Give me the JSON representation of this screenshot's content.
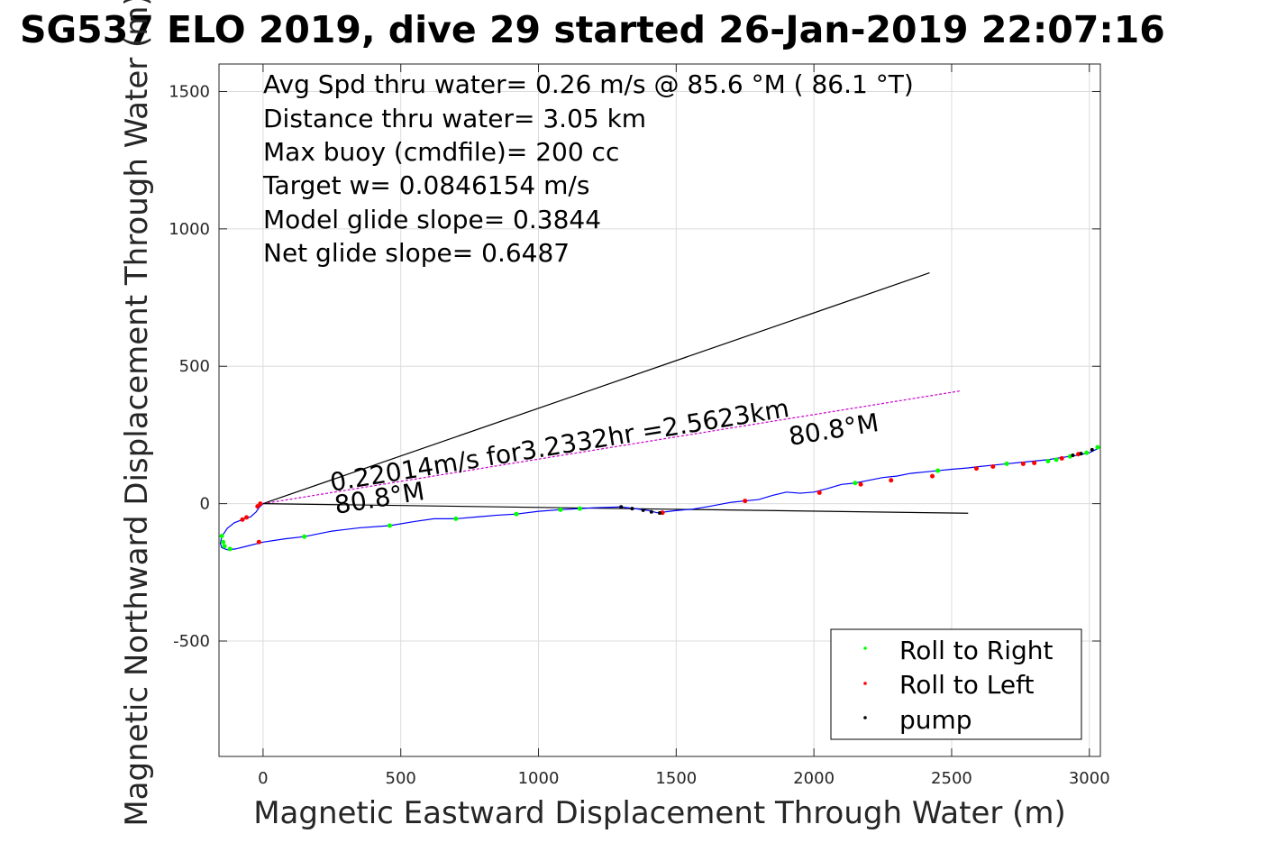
{
  "chart_data": {
    "type": "line",
    "title": "SG537 ELO 2019, dive 29 started 26-Jan-2019 22:07:16",
    "xlabel": "Magnetic Eastward Displacement Through Water (m)",
    "ylabel": "Magnetic Northward Displacement Through Water (m)",
    "xlim": [
      -160,
      3040
    ],
    "ylim": [
      -920,
      1600
    ],
    "xticks": [
      0,
      500,
      1000,
      1500,
      2000,
      2500,
      3000
    ],
    "yticks": [
      -500,
      0,
      500,
      1000,
      1500
    ],
    "grid": true,
    "info_lines": [
      "Avg Spd thru water=  0.26 m/s @  85.6 °M ( 86.1 °T)",
      "Distance thru water=  3.05 km",
      "Max buoy (cmdfile)= 200 cc",
      "Target w= 0.0846154 m/s",
      "Model glide slope= 0.3844",
      "Net glide slope= 0.6487"
    ],
    "annotations": {
      "current": "0.22014m/s for3.2332hr =2.5623km",
      "heading_near": "80.8°M",
      "heading_far": "80.8°M"
    },
    "lines": [
      {
        "role": "model-glide-slope",
        "color": "#000000",
        "x": [
          0,
          2420
        ],
        "y": [
          0,
          840
        ]
      },
      {
        "role": "current-vector",
        "color": "#cc00cc",
        "x": [
          0,
          2530
        ],
        "y": [
          0,
          410
        ]
      },
      {
        "role": "heading-line",
        "color": "#000000",
        "x": [
          0,
          2560
        ],
        "y": [
          0,
          -35
        ]
      }
    ],
    "track": {
      "color": "#0000ff",
      "x": [
        0,
        -15,
        -25,
        -45,
        -75,
        -105,
        -130,
        -150,
        -155,
        -150,
        -130,
        -100,
        -60,
        0,
        80,
        150,
        250,
        350,
        460,
        550,
        620,
        700,
        780,
        850,
        920,
        1000,
        1080,
        1150,
        1200,
        1300,
        1350,
        1400,
        1430,
        1460,
        1500,
        1560,
        1620,
        1700,
        1750,
        1800,
        1850,
        1900,
        1950,
        2000,
        2050,
        2100,
        2150,
        2200,
        2250,
        2300,
        2350,
        2400,
        2450,
        2500,
        2560,
        2600,
        2650,
        2700,
        2750,
        2800,
        2850,
        2900,
        2950,
        3000,
        3030
      ],
      "y": [
        0,
        -15,
        -30,
        -48,
        -58,
        -70,
        -90,
        -120,
        -145,
        -160,
        -168,
        -165,
        -155,
        -140,
        -128,
        -120,
        -100,
        -88,
        -80,
        -65,
        -55,
        -55,
        -48,
        -42,
        -38,
        -28,
        -22,
        -18,
        -15,
        -12,
        -18,
        -25,
        -33,
        -30,
        -25,
        -20,
        -10,
        5,
        10,
        15,
        30,
        42,
        38,
        42,
        55,
        70,
        75,
        85,
        95,
        100,
        110,
        115,
        120,
        125,
        130,
        135,
        140,
        145,
        150,
        155,
        160,
        168,
        175,
        185,
        200
      ]
    },
    "series": [
      {
        "name": "Roll to Right",
        "color": "#00ff00",
        "x": [
          -150,
          -145,
          -140,
          -120,
          150,
          460,
          700,
          920,
          1080,
          1150,
          2150,
          2450,
          2700,
          2850,
          2880,
          2930,
          2990,
          3030
        ],
        "y": [
          -118,
          -140,
          -155,
          -165,
          -120,
          -80,
          -55,
          -38,
          -22,
          -18,
          75,
          120,
          145,
          155,
          160,
          172,
          185,
          205
        ]
      },
      {
        "name": "Roll to Left",
        "color": "#ff0000",
        "x": [
          -10,
          -20,
          -60,
          -75,
          -15,
          1450,
          1750,
          2020,
          2170,
          2280,
          2430,
          2590,
          2650,
          2760,
          2800,
          2900,
          2960
        ],
        "y": [
          0,
          -10,
          -50,
          -58,
          -140,
          -33,
          10,
          40,
          70,
          85,
          100,
          128,
          135,
          145,
          148,
          165,
          180
        ]
      },
      {
        "name": "pump",
        "color": "#000000",
        "x": [
          1300,
          1340,
          1380,
          1410,
          1440,
          2940,
          2970,
          3010
        ],
        "y": [
          -12,
          -18,
          -24,
          -30,
          -34,
          176,
          182,
          196
        ]
      }
    ],
    "legend": "bottom-right"
  }
}
